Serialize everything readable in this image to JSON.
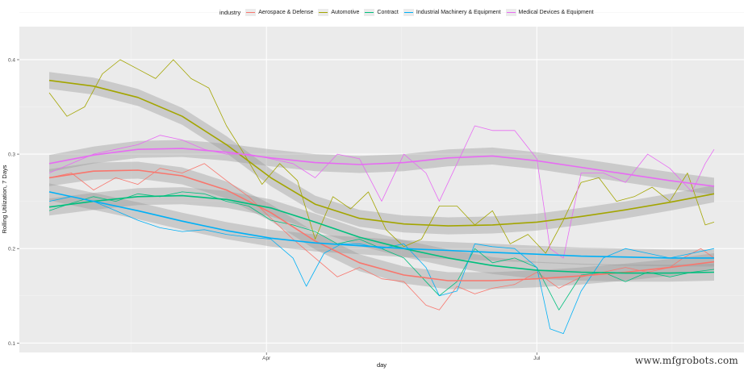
{
  "chart_data": {
    "type": "line",
    "title": "",
    "xlabel": "day",
    "ylabel": "Rolling Utilization, 7 Days",
    "legend_title": "industry",
    "legend_position": "top",
    "grid": true,
    "xlim": [
      0,
      150
    ],
    "ylim": [
      0.09,
      0.435
    ],
    "yticks": [
      0.1,
      0.2,
      0.3,
      0.4
    ],
    "ytick_labels": [
      "0.1",
      "0.2",
      "0.3",
      "0.4"
    ],
    "xticks": [
      {
        "pos": 49,
        "label": "Apr"
      },
      {
        "pos": 110,
        "label": "Jul"
      }
    ],
    "x_minor": [
      18.5,
      79.5,
      140.5
    ],
    "series": [
      {
        "name": "Aerospace & Defense",
        "color": "#F8766D",
        "raw": [
          [
            0,
            0.275
          ],
          [
            5,
            0.28
          ],
          [
            10,
            0.262
          ],
          [
            15,
            0.275
          ],
          [
            20,
            0.268
          ],
          [
            25,
            0.285
          ],
          [
            30,
            0.28
          ],
          [
            35,
            0.29
          ],
          [
            40,
            0.272
          ],
          [
            45,
            0.255
          ],
          [
            50,
            0.232
          ],
          [
            55,
            0.21
          ],
          [
            60,
            0.19
          ],
          [
            65,
            0.17
          ],
          [
            70,
            0.18
          ],
          [
            75,
            0.168
          ],
          [
            80,
            0.165
          ],
          [
            85,
            0.14
          ],
          [
            88,
            0.135
          ],
          [
            92,
            0.16
          ],
          [
            96,
            0.152
          ],
          [
            100,
            0.158
          ],
          [
            105,
            0.162
          ],
          [
            110,
            0.175
          ],
          [
            115,
            0.158
          ],
          [
            120,
            0.17
          ],
          [
            125,
            0.175
          ],
          [
            130,
            0.18
          ],
          [
            135,
            0.175
          ],
          [
            140,
            0.18
          ],
          [
            143,
            0.19
          ],
          [
            147,
            0.2
          ],
          [
            150,
            0.19
          ]
        ],
        "smooth": [
          [
            0,
            0.275
          ],
          [
            10,
            0.282
          ],
          [
            20,
            0.283
          ],
          [
            30,
            0.277
          ],
          [
            40,
            0.262
          ],
          [
            50,
            0.238
          ],
          [
            60,
            0.208
          ],
          [
            70,
            0.185
          ],
          [
            80,
            0.172
          ],
          [
            90,
            0.166
          ],
          [
            100,
            0.166
          ],
          [
            110,
            0.168
          ],
          [
            120,
            0.171
          ],
          [
            130,
            0.175
          ],
          [
            140,
            0.18
          ],
          [
            150,
            0.186
          ]
        ]
      },
      {
        "name": "Automotive",
        "color": "#A3A500",
        "raw": [
          [
            0,
            0.365
          ],
          [
            4,
            0.34
          ],
          [
            8,
            0.35
          ],
          [
            12,
            0.385
          ],
          [
            16,
            0.4
          ],
          [
            20,
            0.39
          ],
          [
            24,
            0.38
          ],
          [
            28,
            0.4
          ],
          [
            32,
            0.38
          ],
          [
            36,
            0.37
          ],
          [
            40,
            0.33
          ],
          [
            44,
            0.3
          ],
          [
            48,
            0.268
          ],
          [
            52,
            0.29
          ],
          [
            56,
            0.272
          ],
          [
            60,
            0.21
          ],
          [
            64,
            0.255
          ],
          [
            68,
            0.242
          ],
          [
            72,
            0.26
          ],
          [
            76,
            0.22
          ],
          [
            80,
            0.202
          ],
          [
            84,
            0.21
          ],
          [
            88,
            0.245
          ],
          [
            92,
            0.245
          ],
          [
            96,
            0.225
          ],
          [
            100,
            0.24
          ],
          [
            104,
            0.205
          ],
          [
            108,
            0.215
          ],
          [
            112,
            0.195
          ],
          [
            116,
            0.23
          ],
          [
            120,
            0.27
          ],
          [
            124,
            0.275
          ],
          [
            128,
            0.25
          ],
          [
            132,
            0.255
          ],
          [
            136,
            0.265
          ],
          [
            140,
            0.25
          ],
          [
            144,
            0.28
          ],
          [
            148,
            0.225
          ],
          [
            150,
            0.228
          ]
        ],
        "smooth": [
          [
            0,
            0.378
          ],
          [
            10,
            0.372
          ],
          [
            20,
            0.36
          ],
          [
            30,
            0.34
          ],
          [
            40,
            0.31
          ],
          [
            50,
            0.275
          ],
          [
            60,
            0.247
          ],
          [
            70,
            0.232
          ],
          [
            80,
            0.226
          ],
          [
            90,
            0.224
          ],
          [
            100,
            0.225
          ],
          [
            110,
            0.228
          ],
          [
            120,
            0.234
          ],
          [
            130,
            0.241
          ],
          [
            140,
            0.249
          ],
          [
            150,
            0.258
          ]
        ]
      },
      {
        "name": "Contract",
        "color": "#00BF7D",
        "raw": [
          [
            0,
            0.24
          ],
          [
            5,
            0.248
          ],
          [
            10,
            0.255
          ],
          [
            15,
            0.25
          ],
          [
            20,
            0.258
          ],
          [
            25,
            0.255
          ],
          [
            30,
            0.26
          ],
          [
            35,
            0.258
          ],
          [
            40,
            0.25
          ],
          [
            45,
            0.245
          ],
          [
            50,
            0.23
          ],
          [
            55,
            0.225
          ],
          [
            60,
            0.218
          ],
          [
            65,
            0.205
          ],
          [
            70,
            0.21
          ],
          [
            75,
            0.2
          ],
          [
            80,
            0.19
          ],
          [
            85,
            0.165
          ],
          [
            88,
            0.15
          ],
          [
            92,
            0.165
          ],
          [
            96,
            0.2
          ],
          [
            100,
            0.185
          ],
          [
            105,
            0.19
          ],
          [
            110,
            0.18
          ],
          [
            115,
            0.135
          ],
          [
            120,
            0.172
          ],
          [
            125,
            0.175
          ],
          [
            130,
            0.165
          ],
          [
            135,
            0.175
          ],
          [
            140,
            0.17
          ],
          [
            145,
            0.175
          ],
          [
            150,
            0.178
          ]
        ],
        "smooth": [
          [
            0,
            0.244
          ],
          [
            10,
            0.25
          ],
          [
            20,
            0.255
          ],
          [
            30,
            0.256
          ],
          [
            40,
            0.252
          ],
          [
            50,
            0.243
          ],
          [
            60,
            0.228
          ],
          [
            70,
            0.212
          ],
          [
            80,
            0.2
          ],
          [
            90,
            0.19
          ],
          [
            100,
            0.182
          ],
          [
            110,
            0.177
          ],
          [
            120,
            0.175
          ],
          [
            130,
            0.174
          ],
          [
            140,
            0.174
          ],
          [
            150,
            0.175
          ]
        ]
      },
      {
        "name": "Industrial Machinery & Equipment",
        "color": "#00B0F6",
        "raw": [
          [
            0,
            0.25
          ],
          [
            5,
            0.255
          ],
          [
            10,
            0.25
          ],
          [
            15,
            0.24
          ],
          [
            20,
            0.23
          ],
          [
            25,
            0.222
          ],
          [
            30,
            0.218
          ],
          [
            35,
            0.22
          ],
          [
            40,
            0.215
          ],
          [
            45,
            0.212
          ],
          [
            50,
            0.21
          ],
          [
            55,
            0.19
          ],
          [
            58,
            0.16
          ],
          [
            62,
            0.195
          ],
          [
            66,
            0.205
          ],
          [
            70,
            0.205
          ],
          [
            75,
            0.2
          ],
          [
            80,
            0.205
          ],
          [
            85,
            0.18
          ],
          [
            88,
            0.15
          ],
          [
            92,
            0.155
          ],
          [
            96,
            0.205
          ],
          [
            100,
            0.202
          ],
          [
            105,
            0.2
          ],
          [
            110,
            0.18
          ],
          [
            113,
            0.115
          ],
          [
            116,
            0.11
          ],
          [
            120,
            0.155
          ],
          [
            125,
            0.19
          ],
          [
            130,
            0.2
          ],
          [
            135,
            0.195
          ],
          [
            140,
            0.19
          ],
          [
            145,
            0.195
          ],
          [
            150,
            0.2
          ]
        ],
        "smooth": [
          [
            0,
            0.26
          ],
          [
            10,
            0.25
          ],
          [
            20,
            0.24
          ],
          [
            30,
            0.229
          ],
          [
            40,
            0.219
          ],
          [
            50,
            0.211
          ],
          [
            60,
            0.206
          ],
          [
            70,
            0.203
          ],
          [
            80,
            0.2
          ],
          [
            90,
            0.198
          ],
          [
            100,
            0.196
          ],
          [
            110,
            0.194
          ],
          [
            120,
            0.192
          ],
          [
            130,
            0.191
          ],
          [
            140,
            0.19
          ],
          [
            150,
            0.19
          ]
        ]
      },
      {
        "name": "Medical Devices & Equipment",
        "color": "#E76BF3",
        "raw": [
          [
            0,
            0.28
          ],
          [
            5,
            0.29
          ],
          [
            10,
            0.3
          ],
          [
            15,
            0.305
          ],
          [
            20,
            0.31
          ],
          [
            25,
            0.32
          ],
          [
            30,
            0.315
          ],
          [
            35,
            0.305
          ],
          [
            40,
            0.3
          ],
          [
            45,
            0.3
          ],
          [
            50,
            0.295
          ],
          [
            55,
            0.29
          ],
          [
            60,
            0.275
          ],
          [
            65,
            0.3
          ],
          [
            70,
            0.295
          ],
          [
            75,
            0.25
          ],
          [
            80,
            0.3
          ],
          [
            85,
            0.28
          ],
          [
            88,
            0.25
          ],
          [
            92,
            0.29
          ],
          [
            96,
            0.33
          ],
          [
            100,
            0.325
          ],
          [
            105,
            0.325
          ],
          [
            110,
            0.295
          ],
          [
            113,
            0.2
          ],
          [
            116,
            0.19
          ],
          [
            120,
            0.28
          ],
          [
            125,
            0.28
          ],
          [
            130,
            0.27
          ],
          [
            135,
            0.3
          ],
          [
            140,
            0.285
          ],
          [
            145,
            0.26
          ],
          [
            148,
            0.29
          ],
          [
            150,
            0.305
          ]
        ],
        "smooth": [
          [
            0,
            0.29
          ],
          [
            10,
            0.299
          ],
          [
            20,
            0.305
          ],
          [
            30,
            0.306
          ],
          [
            40,
            0.302
          ],
          [
            50,
            0.296
          ],
          [
            60,
            0.291
          ],
          [
            70,
            0.289
          ],
          [
            80,
            0.291
          ],
          [
            90,
            0.296
          ],
          [
            100,
            0.298
          ],
          [
            110,
            0.293
          ],
          [
            120,
            0.286
          ],
          [
            130,
            0.279
          ],
          [
            140,
            0.272
          ],
          [
            150,
            0.266
          ]
        ]
      }
    ]
  },
  "watermark": "www.mfgrobots.com"
}
